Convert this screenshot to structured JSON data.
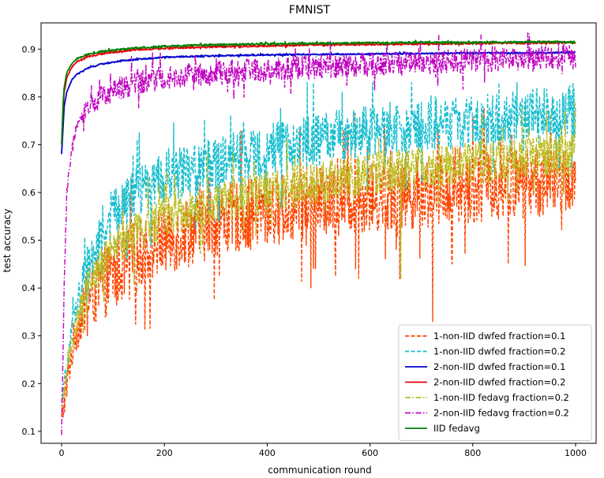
{
  "chart_data": {
    "type": "line",
    "title": "FMNIST",
    "xlabel": "communication round",
    "ylabel": "test accuracy",
    "xlim": [
      -40,
      1040
    ],
    "ylim": [
      0.075,
      0.955
    ],
    "xticks": [
      0,
      200,
      400,
      600,
      800,
      1000
    ],
    "yticks": [
      0.1,
      0.2,
      0.3,
      0.4,
      0.5,
      0.6,
      0.7,
      0.8,
      0.9
    ],
    "legend_position": "lower-right",
    "grid": false,
    "series": [
      {
        "name": "1-non-IID dwfed fraction=0.1",
        "color": "#ff4500",
        "dash": "dashed",
        "x": [
          0,
          10,
          25,
          50,
          75,
          100,
          150,
          200,
          300,
          400,
          500,
          600,
          700,
          800,
          900,
          1000
        ],
        "y": [
          0.12,
          0.2,
          0.3,
          0.37,
          0.4,
          0.43,
          0.47,
          0.5,
          0.54,
          0.56,
          0.58,
          0.59,
          0.6,
          0.61,
          0.62,
          0.63
        ],
        "amplitude": 0.075,
        "dip_min": 0.33,
        "dip_at_x": 722
      },
      {
        "name": "1-non-IID dwfed fraction=0.2",
        "color": "#17becf",
        "dash": "dashed",
        "x": [
          0,
          10,
          25,
          50,
          75,
          100,
          150,
          200,
          300,
          400,
          500,
          600,
          700,
          800,
          900,
          1000
        ],
        "y": [
          0.15,
          0.24,
          0.35,
          0.45,
          0.51,
          0.56,
          0.6,
          0.63,
          0.66,
          0.69,
          0.71,
          0.73,
          0.74,
          0.75,
          0.76,
          0.77
        ],
        "amplitude": 0.055,
        "peak_max": 0.83
      },
      {
        "name": "2-non-IID dwfed fraction=0.1",
        "color": "#0000cc",
        "dash": "solid",
        "x": [
          0,
          3,
          5,
          10,
          20,
          30,
          50,
          75,
          100,
          150,
          200,
          300,
          400,
          500,
          600,
          700,
          800,
          900,
          1000
        ],
        "y": [
          0.68,
          0.74,
          0.78,
          0.81,
          0.836,
          0.848,
          0.86,
          0.868,
          0.873,
          0.879,
          0.883,
          0.886,
          0.888,
          0.889,
          0.89,
          0.891,
          0.892,
          0.892,
          0.893
        ],
        "amplitude": 0.0015
      },
      {
        "name": "2-non-IID dwfed fraction=0.2",
        "color": "#e8000b",
        "dash": "solid",
        "x": [
          0,
          3,
          5,
          10,
          20,
          30,
          50,
          75,
          100,
          150,
          200,
          300,
          400,
          500,
          600,
          700,
          800,
          900,
          1000
        ],
        "y": [
          0.7,
          0.78,
          0.81,
          0.84,
          0.863,
          0.874,
          0.884,
          0.89,
          0.894,
          0.899,
          0.902,
          0.905,
          0.907,
          0.909,
          0.91,
          0.911,
          0.912,
          0.913,
          0.913
        ],
        "amplitude": 0.002
      },
      {
        "name": "1-non-IID fedavg fraction=0.2",
        "color": "#bcbd22",
        "dash": "dashdot",
        "x": [
          0,
          10,
          25,
          50,
          75,
          100,
          150,
          200,
          300,
          400,
          500,
          600,
          700,
          800,
          900,
          1000
        ],
        "y": [
          0.14,
          0.22,
          0.31,
          0.4,
          0.45,
          0.48,
          0.52,
          0.55,
          0.58,
          0.6,
          0.62,
          0.64,
          0.65,
          0.66,
          0.67,
          0.68
        ],
        "amplitude": 0.045,
        "dip_min": 0.42,
        "dip_at_x": 660
      },
      {
        "name": "2-non-IID fedavg fraction=0.2",
        "color": "#c000c0",
        "dash": "dashdot",
        "x": [
          0,
          5,
          10,
          20,
          30,
          50,
          75,
          100,
          150,
          200,
          300,
          400,
          500,
          600,
          700,
          800,
          900,
          1000
        ],
        "y": [
          0.1,
          0.4,
          0.6,
          0.69,
          0.74,
          0.78,
          0.8,
          0.815,
          0.83,
          0.84,
          0.85,
          0.857,
          0.863,
          0.868,
          0.872,
          0.876,
          0.88,
          0.884
        ],
        "amplitude": 0.025
      },
      {
        "name": "IID fedavg",
        "color": "#008000",
        "dash": "solid",
        "x": [
          0,
          3,
          5,
          10,
          20,
          30,
          50,
          75,
          100,
          150,
          200,
          300,
          400,
          500,
          600,
          700,
          800,
          900,
          1000
        ],
        "y": [
          0.7,
          0.79,
          0.82,
          0.85,
          0.87,
          0.88,
          0.889,
          0.895,
          0.898,
          0.903,
          0.906,
          0.909,
          0.911,
          0.912,
          0.913,
          0.914,
          0.914,
          0.915,
          0.915
        ],
        "amplitude": 0.002
      }
    ]
  }
}
